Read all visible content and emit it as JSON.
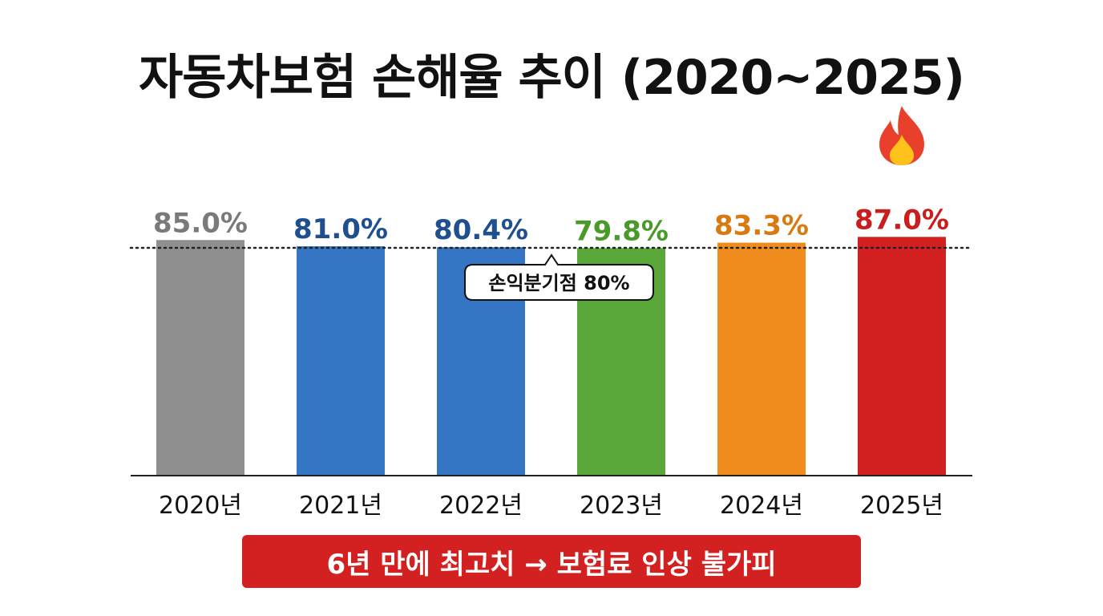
{
  "page": {
    "title": "자동차보험 손해율 추이 (2020~2025)",
    "banner": "6년 만에 최고치 → 보험료 인상 불가피"
  },
  "chart_data": {
    "type": "bar",
    "title": "자동차보험 손해율 추이 (2020~2025)",
    "xlabel": "",
    "ylabel": "",
    "categories": [
      "2020년",
      "2021년",
      "2022년",
      "2023년",
      "2024년",
      "2025년"
    ],
    "values": [
      85.0,
      81.0,
      80.4,
      79.8,
      83.3,
      87.0
    ],
    "labels": [
      "85.0%",
      "81.0%",
      "80.4%",
      "79.8%",
      "83.3%",
      "87.0%"
    ],
    "colors": [
      "#8f8f8f",
      "#3476c3",
      "#3476c3",
      "#5aa83a",
      "#f08c1e",
      "#d21f1f"
    ],
    "label_colors": [
      "#7a7a7a",
      "#1f4f8f",
      "#1f4f8f",
      "#4a9a2a",
      "#d97a10",
      "#c81e1e"
    ],
    "reference_line": {
      "value": 80,
      "label": "손익분기점 80%"
    },
    "highlight_icon": "fire-icon",
    "highlight_index": 5,
    "ylim": [
      0,
      100
    ]
  }
}
